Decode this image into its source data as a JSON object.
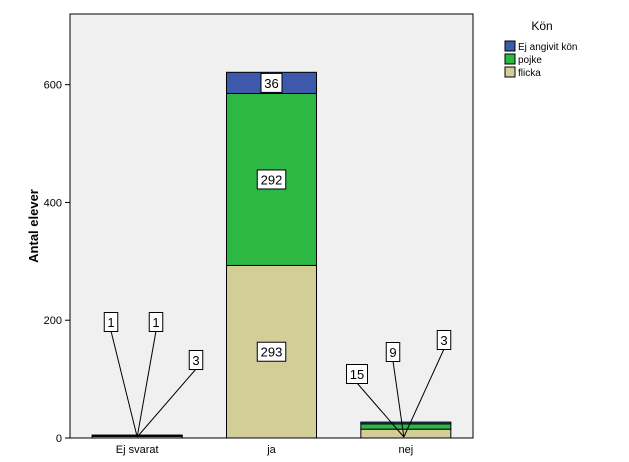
{
  "chart_data": {
    "type": "bar",
    "stacked": true,
    "title": "",
    "xlabel": "",
    "ylabel": "Antal elever",
    "ylim": [
      0,
      720
    ],
    "yticks": [
      0,
      200,
      400,
      600
    ],
    "categories": [
      "Ej svarat",
      "ja",
      "nej"
    ],
    "series": [
      {
        "name": "flicka",
        "color": "#d3ce97",
        "values": [
          3,
          293,
          15
        ]
      },
      {
        "name": "pojke",
        "color": "#2cb843",
        "values": [
          1,
          292,
          9
        ]
      },
      {
        "name": "Ej angivit kön",
        "color": "#3e58ac",
        "values": [
          1,
          36,
          3
        ]
      }
    ],
    "legend": {
      "title": "Kön",
      "placement": "right",
      "entries": [
        "Ej angivit kön",
        "pojke",
        "flicka"
      ]
    },
    "plot_background": "#f0f0f0",
    "grid": false
  }
}
